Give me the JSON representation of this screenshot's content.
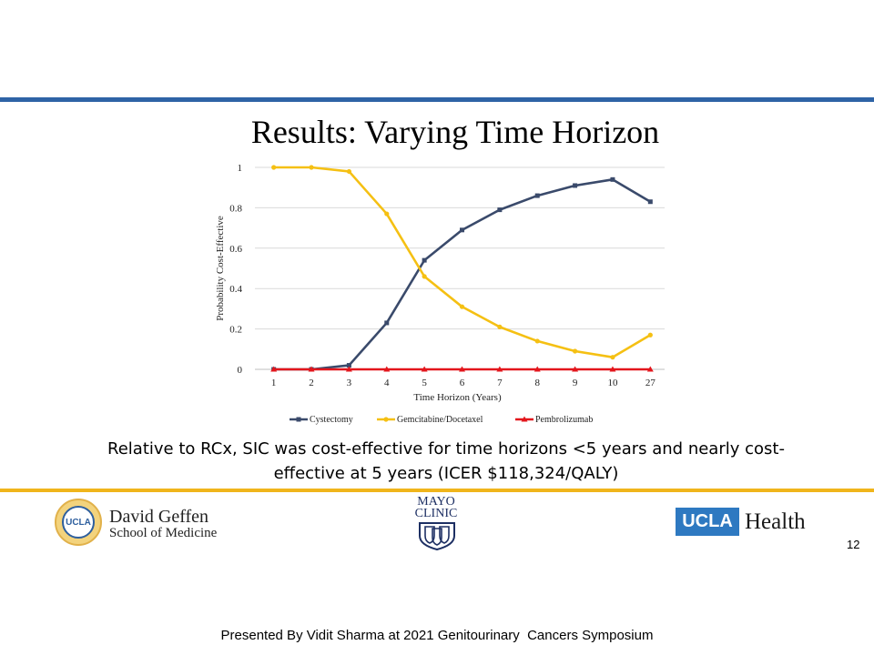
{
  "slide": {
    "title": "Results: Varying Time Horizon",
    "summary_line1": "Relative to RCx, SIC was cost-effective for time horizons <5 years and nearly cost-",
    "summary_line2": "effective at 5 years (ICER $118,324/QALY)",
    "page_number": "12",
    "footer": "Presented By Vidit Sharma at 2021 Genitourinary  Cancers Symposium"
  },
  "logos": {
    "geffen_seal_text": "UCLA",
    "geffen_name": "David Geffen",
    "geffen_sub": "School of Medicine",
    "mayo_line1": "MAYO",
    "mayo_line2": "CLINIC",
    "ucla_box": "UCLA",
    "ucla_word": "Health"
  },
  "colors": {
    "top_rule": "#2e63a6",
    "bottom_rule": "#f0b51b",
    "cystectomy": "#3a4a6b",
    "gemcitabine": "#f5c013",
    "pembrolizumab": "#e3161c",
    "ucla_blue": "#2e79c1"
  },
  "chart_data": {
    "type": "line",
    "title": "",
    "xlabel": "Time Horizon (Years)",
    "ylabel": "Probability Cost-Effective",
    "categories": [
      "1",
      "2",
      "3",
      "4",
      "5",
      "6",
      "7",
      "8",
      "9",
      "10",
      "27"
    ],
    "ylim": [
      0,
      1
    ],
    "yticks": [
      "0",
      "0.2",
      "0.4",
      "0.6",
      "0.8",
      "1"
    ],
    "grid": true,
    "legend_position": "bottom",
    "series": [
      {
        "name": "Cystectomy",
        "color": "#3a4a6b",
        "marker": "square",
        "values": [
          0,
          0,
          0.02,
          0.23,
          0.54,
          0.69,
          0.79,
          0.86,
          0.91,
          0.94,
          0.83
        ]
      },
      {
        "name": "Gemcitabine/Docetaxel",
        "color": "#f5c013",
        "marker": "circle",
        "values": [
          1,
          1,
          0.98,
          0.77,
          0.46,
          0.31,
          0.21,
          0.14,
          0.09,
          0.06,
          0.17
        ]
      },
      {
        "name": "Pembrolizumab",
        "color": "#e3161c",
        "marker": "triangle",
        "values": [
          0,
          0,
          0,
          0,
          0,
          0,
          0,
          0,
          0,
          0,
          0
        ]
      }
    ]
  }
}
